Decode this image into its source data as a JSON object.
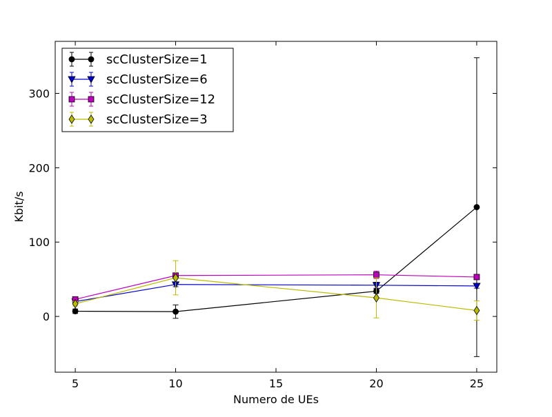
{
  "chart_data": {
    "type": "line",
    "title": "",
    "xlabel": "Numero de UEs",
    "ylabel": "Kbit/s",
    "xlim": [
      4,
      26
    ],
    "ylim": [
      -75,
      370
    ],
    "xticks": [
      5,
      10,
      15,
      20,
      25
    ],
    "yticks": [
      0,
      100,
      200,
      300
    ],
    "grid": false,
    "legend_position": "top-left",
    "series": [
      {
        "name": "scClusterSize=1",
        "color": "#000000",
        "marker": "circle",
        "x": [
          5,
          10,
          20,
          25
        ],
        "y": [
          7,
          6.5,
          34,
          147
        ],
        "error": [
          3,
          9,
          3,
          201
        ]
      },
      {
        "name": "scClusterSize=6",
        "color": "#0000cc",
        "marker": "triangle-down",
        "x": [
          5,
          10,
          20,
          25
        ],
        "y": [
          20,
          43,
          42,
          41
        ],
        "error": [
          2,
          3,
          4,
          3
        ]
      },
      {
        "name": "scClusterSize=12",
        "color": "#bb00bb",
        "marker": "square",
        "x": [
          5,
          10,
          20,
          25
        ],
        "y": [
          23,
          55,
          56,
          53
        ],
        "error": [
          2,
          3,
          5,
          2
        ]
      },
      {
        "name": "scClusterSize=3",
        "color": "#bbbb00",
        "marker": "diamond",
        "x": [
          5,
          10,
          20,
          25
        ],
        "y": [
          17,
          52,
          25,
          8
        ],
        "error": [
          3,
          23,
          27,
          13
        ]
      }
    ]
  }
}
